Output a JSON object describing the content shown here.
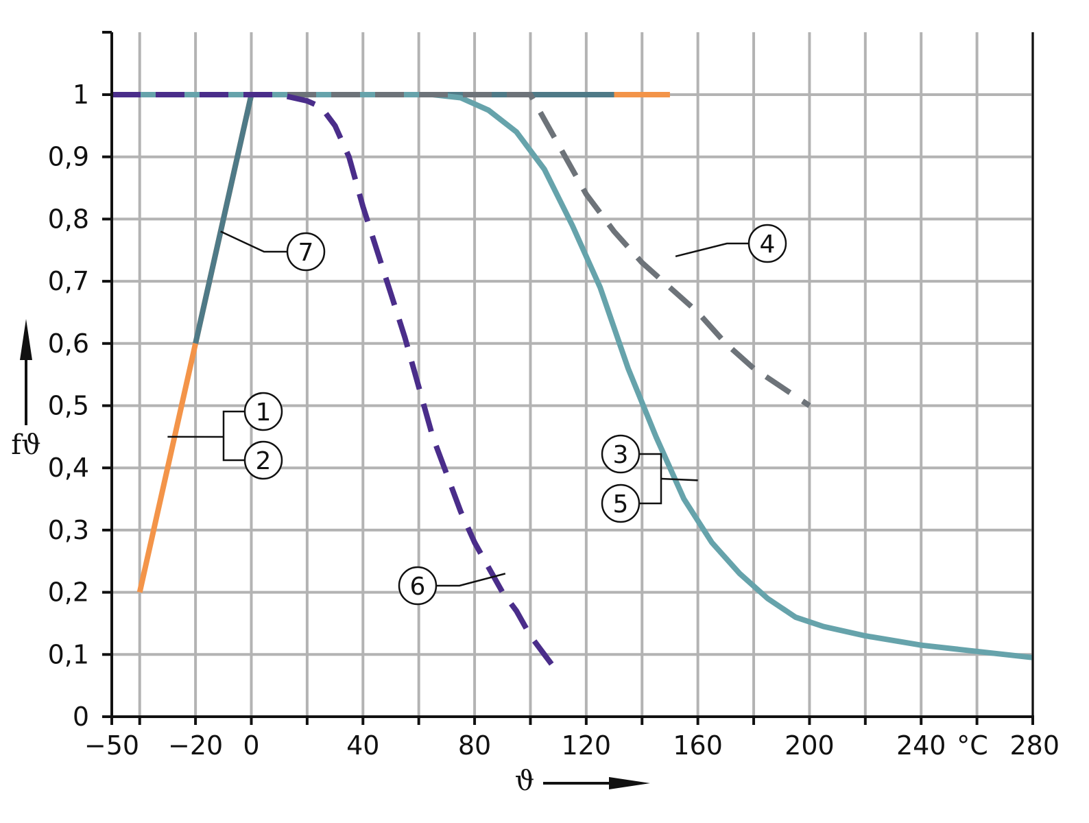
{
  "chart_data": {
    "type": "line",
    "title": "",
    "xlabel": "ϑ",
    "ylabel": "fϑ",
    "x_unit": "°C",
    "xlim": [
      -50,
      280
    ],
    "ylim": [
      0,
      1
    ],
    "grid": true,
    "x_ticks": [
      -50,
      -40,
      -20,
      0,
      20,
      40,
      60,
      80,
      100,
      120,
      140,
      160,
      180,
      200,
      220,
      240,
      260,
      280
    ],
    "x_tick_labels": [
      {
        "value": -50,
        "label": "−50"
      },
      {
        "value": -20,
        "label": "−20"
      },
      {
        "value": 0,
        "label": "0"
      },
      {
        "value": 40,
        "label": "40"
      },
      {
        "value": 80,
        "label": "80"
      },
      {
        "value": 120,
        "label": "120"
      },
      {
        "value": 160,
        "label": "160"
      },
      {
        "value": 200,
        "label": "200"
      },
      {
        "value": 240,
        "label": "240"
      },
      {
        "value": 280,
        "label": "280"
      }
    ],
    "y_ticks": [
      0,
      0.1,
      0.2,
      0.3,
      0.4,
      0.5,
      0.6,
      0.7,
      0.8,
      0.9,
      1
    ],
    "y_tick_labels": [
      "0",
      "0,1",
      "0,2",
      "0,3",
      "0,4",
      "0,5",
      "0,6",
      "0,7",
      "0,8",
      "0,9",
      "1"
    ],
    "series": [
      {
        "color": "#f39449",
        "style": "solid",
        "points": [
          [
            -40,
            0.2
          ],
          [
            -20,
            0.6
          ],
          [
            0,
            1
          ],
          [
            150,
            1
          ]
        ]
      },
      {
        "color": "#4f7a87",
        "style": "solid",
        "points": [
          [
            -20,
            0.6
          ],
          [
            0,
            1
          ],
          [
            130,
            1
          ]
        ]
      },
      {
        "color": "#66a3ab",
        "style": "solid",
        "points": [
          [
            -50,
            1
          ],
          [
            65,
            1
          ],
          [
            75,
            0.995
          ],
          [
            85,
            0.975
          ],
          [
            95,
            0.94
          ],
          [
            105,
            0.88
          ],
          [
            115,
            0.79
          ],
          [
            125,
            0.69
          ],
          [
            135,
            0.56
          ],
          [
            145,
            0.45
          ],
          [
            155,
            0.35
          ],
          [
            165,
            0.28
          ],
          [
            175,
            0.23
          ],
          [
            185,
            0.19
          ],
          [
            195,
            0.16
          ],
          [
            205,
            0.145
          ],
          [
            220,
            0.13
          ],
          [
            240,
            0.115
          ],
          [
            260,
            0.105
          ],
          [
            280,
            0.095
          ]
        ]
      },
      {
        "color": "#6d7379",
        "style": "dashed",
        "points": [
          [
            -50,
            1
          ],
          [
            100,
            1
          ],
          [
            110,
            0.92
          ],
          [
            120,
            0.84
          ],
          [
            130,
            0.78
          ],
          [
            140,
            0.73
          ],
          [
            150,
            0.69
          ],
          [
            160,
            0.65
          ],
          [
            170,
            0.6
          ],
          [
            180,
            0.56
          ],
          [
            190,
            0.53
          ],
          [
            200,
            0.5
          ]
        ]
      },
      {
        "color": "#4a2d8a",
        "style": "dashed",
        "points": [
          [
            -50,
            1
          ],
          [
            10,
            1
          ],
          [
            20,
            0.99
          ],
          [
            25,
            0.98
          ],
          [
            30,
            0.95
          ],
          [
            35,
            0.9
          ],
          [
            40,
            0.82
          ],
          [
            45,
            0.75
          ],
          [
            50,
            0.68
          ],
          [
            55,
            0.61
          ],
          [
            60,
            0.53
          ],
          [
            65,
            0.45
          ],
          [
            70,
            0.39
          ],
          [
            75,
            0.33
          ],
          [
            80,
            0.28
          ],
          [
            85,
            0.24
          ],
          [
            90,
            0.2
          ],
          [
            95,
            0.17
          ],
          [
            100,
            0.13
          ],
          [
            105,
            0.1
          ],
          [
            110,
            0.07
          ]
        ]
      }
    ],
    "annotations": [
      {
        "text": "1",
        "target": [
          -30,
          0.45
        ]
      },
      {
        "text": "2",
        "target": [
          -30,
          0.45
        ]
      },
      {
        "text": "3",
        "target": [
          160,
          0.38
        ]
      },
      {
        "text": "5",
        "target": [
          160,
          0.38
        ]
      },
      {
        "text": "4",
        "target": [
          152,
          0.74
        ]
      },
      {
        "text": "6",
        "target": [
          91,
          0.23
        ]
      },
      {
        "text": "7",
        "target": [
          -11,
          0.78
        ]
      }
    ]
  }
}
